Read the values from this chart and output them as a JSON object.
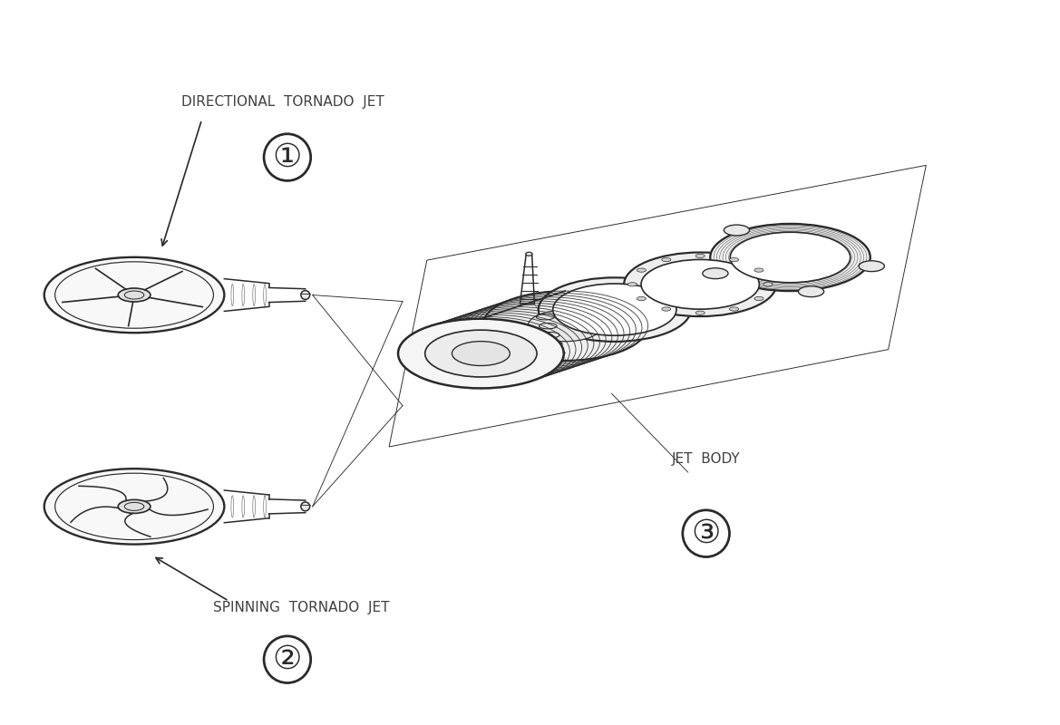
{
  "bg_color": "#ffffff",
  "line_color": "#2a2a2a",
  "label_color": "#404040",
  "labels": {
    "1": "DIRECTIONAL  TORNADO  JET",
    "2": "SPINNING  TORNADO  JET",
    "3": "JET  BODY"
  },
  "figsize": [
    11.69,
    8.0
  ],
  "dpi": 100
}
